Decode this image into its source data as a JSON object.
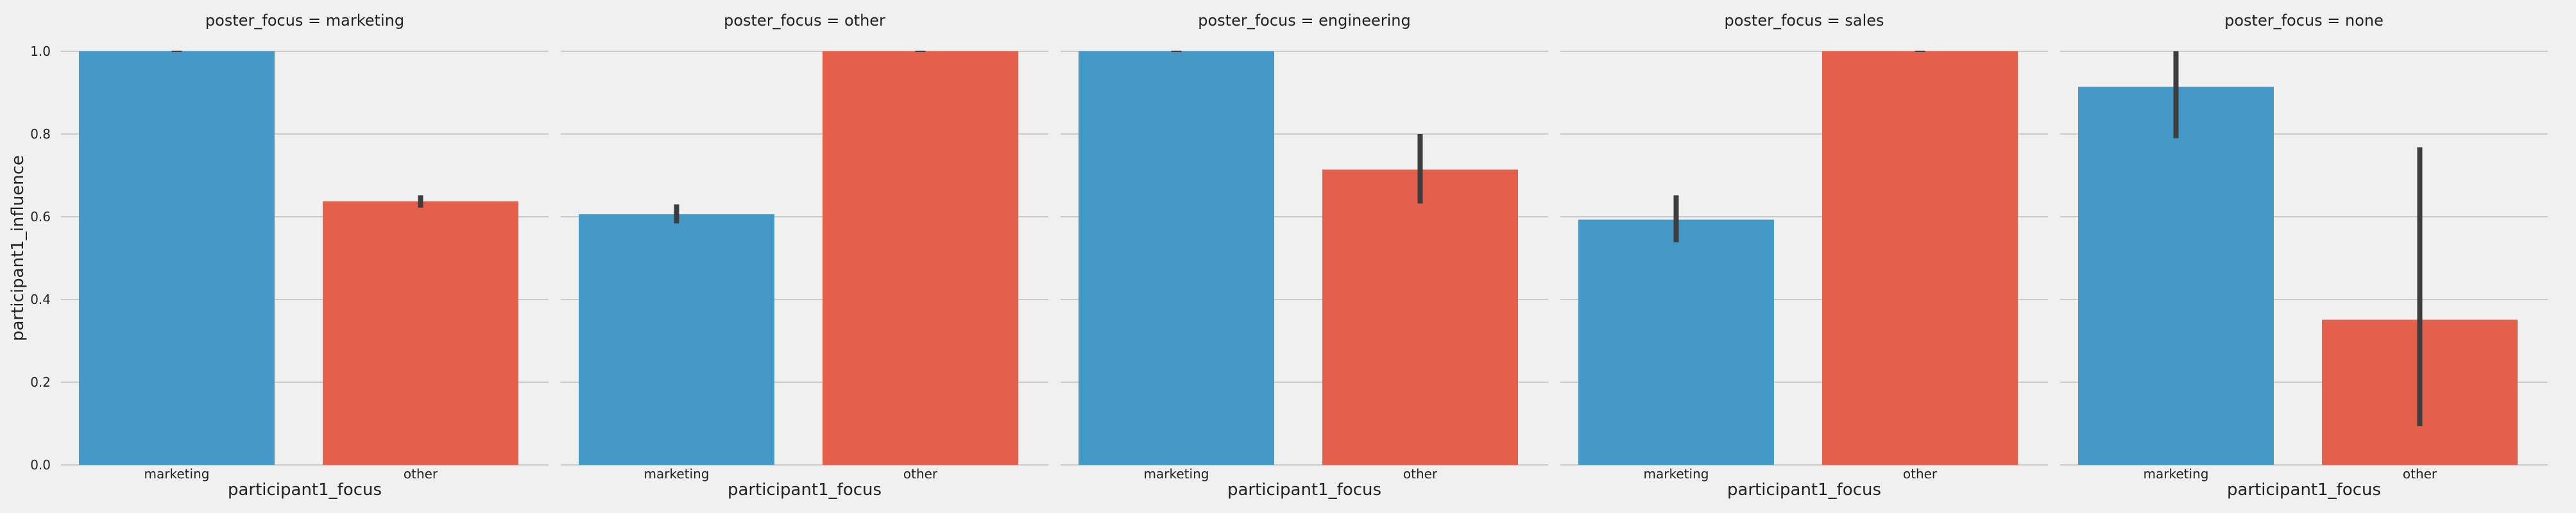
{
  "chart_data": {
    "type": "bar",
    "facet_variable": "poster_focus",
    "xlabel": "participant1_focus",
    "ylabel": "participant1_influence",
    "ylim": [
      0,
      1.0
    ],
    "yticks": [
      "0.0",
      "0.2",
      "0.4",
      "0.6",
      "0.8",
      "1.0"
    ],
    "grid": true,
    "categories": [
      "marketing",
      "other"
    ],
    "colors": [
      "#4599c7",
      "#e5604a"
    ],
    "panels": [
      {
        "title": "poster_focus = marketing",
        "bars": [
          {
            "category": "marketing",
            "value": 1.0,
            "ci": [
              1.0,
              1.0
            ]
          },
          {
            "category": "other",
            "value": 0.637,
            "ci": [
              0.622,
              0.652
            ]
          }
        ]
      },
      {
        "title": "poster_focus = other",
        "bars": [
          {
            "category": "marketing",
            "value": 0.606,
            "ci": [
              0.584,
              0.63
            ]
          },
          {
            "category": "other",
            "value": 1.0,
            "ci": [
              1.0,
              1.0
            ]
          }
        ]
      },
      {
        "title": "poster_focus = engineering",
        "bars": [
          {
            "category": "marketing",
            "value": 1.0,
            "ci": [
              1.0,
              1.0
            ]
          },
          {
            "category": "other",
            "value": 0.714,
            "ci": [
              0.632,
              0.8
            ]
          }
        ]
      },
      {
        "title": "poster_focus = sales",
        "bars": [
          {
            "category": "marketing",
            "value": 0.593,
            "ci": [
              0.538,
              0.652
            ]
          },
          {
            "category": "other",
            "value": 1.0,
            "ci": [
              1.0,
              1.0
            ]
          }
        ]
      },
      {
        "title": "poster_focus = none",
        "bars": [
          {
            "category": "marketing",
            "value": 0.914,
            "ci": [
              0.79,
              1.0
            ]
          },
          {
            "category": "other",
            "value": 0.351,
            "ci": [
              0.094,
              0.768
            ]
          }
        ]
      }
    ]
  }
}
